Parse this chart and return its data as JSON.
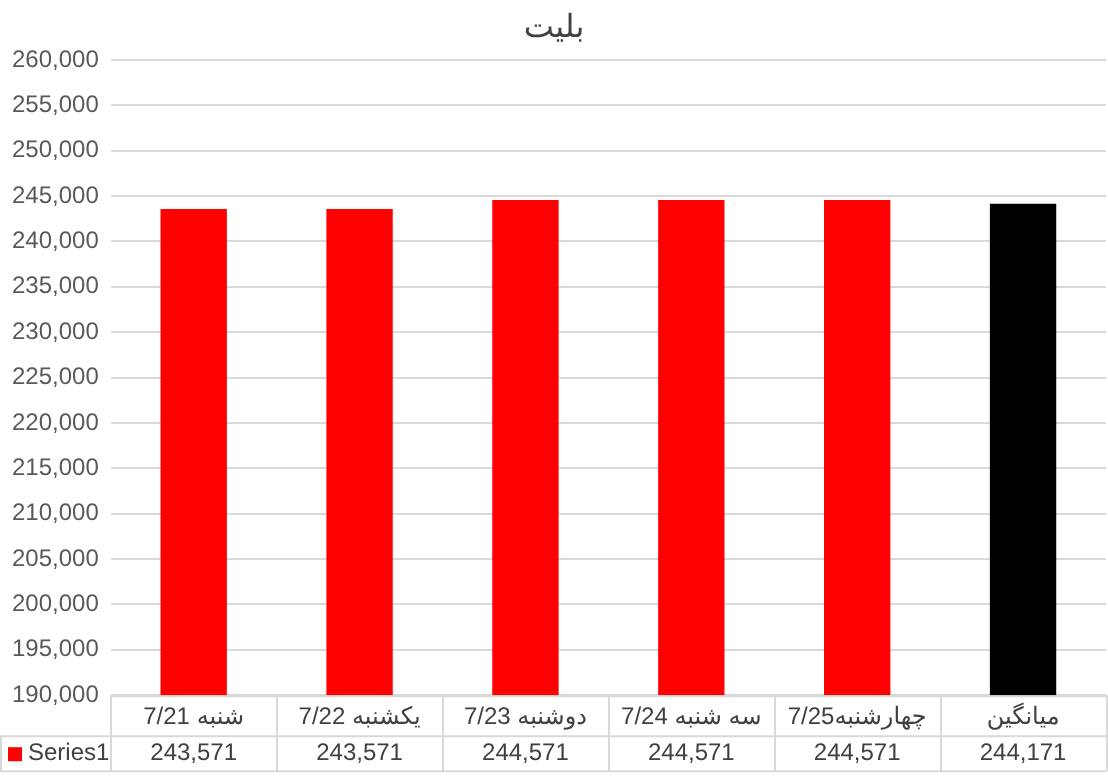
{
  "chart_data": {
    "type": "bar",
    "title": "بلیت",
    "categories": [
      "شنبه 7/21",
      "یکشنبه 7/22",
      "دوشنبه 7/23",
      "سه شنبه 7/24",
      "چهارشنبه7/25",
      "میانگین"
    ],
    "series": [
      {
        "name": "Series1",
        "color": "#ff0000",
        "colors": [
          "#ff0000",
          "#ff0000",
          "#ff0000",
          "#ff0000",
          "#ff0000",
          "#000000"
        ],
        "values": [
          243571,
          243571,
          244571,
          244571,
          244571,
          244171
        ],
        "value_labels": [
          "243,571",
          "243,571",
          "244,571",
          "244,571",
          "244,571",
          "244,171"
        ]
      }
    ],
    "ylim": [
      190000,
      260000
    ],
    "yticks": [
      {
        "value": 190000,
        "label": "190,000"
      },
      {
        "value": 195000,
        "label": "195,000"
      },
      {
        "value": 200000,
        "label": "200,000"
      },
      {
        "value": 205000,
        "label": "205,000"
      },
      {
        "value": 210000,
        "label": "210,000"
      },
      {
        "value": 215000,
        "label": "215,000"
      },
      {
        "value": 220000,
        "label": "220,000"
      },
      {
        "value": 225000,
        "label": "225,000"
      },
      {
        "value": 230000,
        "label": "230,000"
      },
      {
        "value": 235000,
        "label": "235,000"
      },
      {
        "value": 240000,
        "label": "240,000"
      },
      {
        "value": 245000,
        "label": "245,000"
      },
      {
        "value": 250000,
        "label": "250,000"
      },
      {
        "value": 255000,
        "label": "255,000"
      },
      {
        "value": 260000,
        "label": "260,000"
      }
    ],
    "grid": "y",
    "legend": "bottom"
  }
}
